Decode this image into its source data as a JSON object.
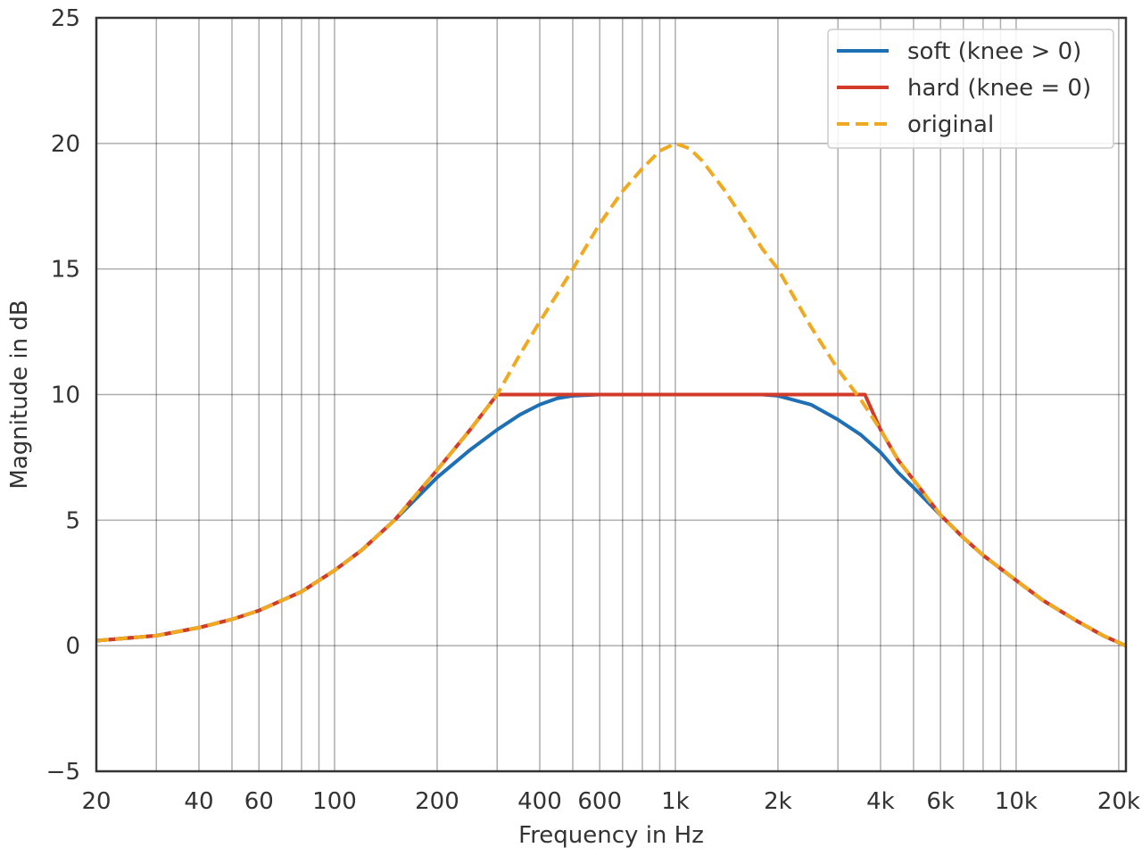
{
  "chart_data": {
    "type": "line",
    "title": "",
    "xlabel": "Frequency in Hz",
    "ylabel": "Magnitude in dB",
    "xscale": "log",
    "xlim": [
      20,
      21000
    ],
    "ylim": [
      -5,
      25
    ],
    "grid": true,
    "legend_position": "top-right",
    "x_ticks": [
      {
        "value": 20,
        "label": "20"
      },
      {
        "value": 40,
        "label": "40"
      },
      {
        "value": 60,
        "label": "60"
      },
      {
        "value": 100,
        "label": "100"
      },
      {
        "value": 200,
        "label": "200"
      },
      {
        "value": 400,
        "label": "400"
      },
      {
        "value": 600,
        "label": "600"
      },
      {
        "value": 1000,
        "label": "1k"
      },
      {
        "value": 2000,
        "label": "2k"
      },
      {
        "value": 4000,
        "label": "4k"
      },
      {
        "value": 6000,
        "label": "6k"
      },
      {
        "value": 10000,
        "label": "10k"
      },
      {
        "value": 20000,
        "label": "20k"
      }
    ],
    "x_gridlines": [
      20,
      30,
      40,
      50,
      60,
      70,
      80,
      90,
      100,
      200,
      300,
      400,
      500,
      600,
      700,
      800,
      900,
      1000,
      2000,
      3000,
      4000,
      5000,
      6000,
      7000,
      8000,
      9000,
      10000,
      20000
    ],
    "y_ticks": [
      {
        "value": -5,
        "label": "−5"
      },
      {
        "value": 0,
        "label": "0"
      },
      {
        "value": 5,
        "label": "5"
      },
      {
        "value": 10,
        "label": "10"
      },
      {
        "value": 15,
        "label": "15"
      },
      {
        "value": 20,
        "label": "20"
      },
      {
        "value": 25,
        "label": "25"
      }
    ],
    "series": [
      {
        "name": "soft (knee > 0)",
        "color": "#1f6fb4",
        "dash": "solid",
        "x": [
          20,
          30,
          40,
          50,
          60,
          70,
          80,
          100,
          120,
          150,
          200,
          250,
          300,
          350,
          400,
          450,
          500,
          600,
          700,
          800,
          1000,
          1200,
          1500,
          1800,
          2000,
          2500,
          3000,
          3500,
          4000,
          4500,
          5000,
          6000,
          7000,
          8000,
          10000,
          12000,
          15000,
          18000,
          21000
        ],
        "y": [
          0.2,
          0.4,
          0.72,
          1.05,
          1.4,
          1.8,
          2.15,
          3.0,
          3.8,
          5.0,
          6.7,
          7.8,
          8.6,
          9.2,
          9.6,
          9.85,
          9.95,
          10.0,
          10.0,
          10.0,
          10.0,
          10.0,
          10.0,
          10.0,
          9.95,
          9.6,
          9.0,
          8.4,
          7.7,
          6.9,
          6.3,
          5.2,
          4.3,
          3.6,
          2.6,
          1.8,
          1.0,
          0.4,
          0.0
        ]
      },
      {
        "name": "hard (knee = 0)",
        "color": "#d23b2a",
        "dash": "solid",
        "x": [
          20,
          30,
          40,
          50,
          60,
          70,
          80,
          100,
          120,
          150,
          200,
          250,
          300,
          400,
          600,
          1000,
          2000,
          3000,
          3600,
          4000,
          4500,
          5000,
          6000,
          7000,
          8000,
          10000,
          12000,
          15000,
          18000,
          21000
        ],
        "y": [
          0.2,
          0.4,
          0.72,
          1.05,
          1.4,
          1.8,
          2.15,
          3.0,
          3.8,
          5.0,
          7.0,
          8.6,
          10.0,
          10.0,
          10.0,
          10.0,
          10.0,
          10.0,
          10.0,
          8.6,
          7.4,
          6.6,
          5.2,
          4.3,
          3.6,
          2.6,
          1.8,
          1.0,
          0.4,
          0.0
        ]
      },
      {
        "name": "original",
        "color": "#f0aa22",
        "dash": "dashed",
        "x": [
          20,
          30,
          40,
          50,
          60,
          70,
          80,
          100,
          120,
          150,
          200,
          250,
          300,
          350,
          400,
          450,
          500,
          600,
          700,
          800,
          900,
          1000,
          1100,
          1200,
          1400,
          1600,
          1800,
          2000,
          2500,
          3000,
          3500,
          4000,
          4500,
          5000,
          6000,
          7000,
          8000,
          10000,
          12000,
          15000,
          18000,
          21000
        ],
        "y": [
          0.2,
          0.4,
          0.72,
          1.05,
          1.4,
          1.8,
          2.15,
          3.0,
          3.8,
          5.0,
          7.0,
          8.6,
          10.0,
          11.6,
          12.9,
          14.0,
          15.0,
          16.8,
          18.1,
          19.0,
          19.7,
          20.0,
          19.8,
          19.3,
          18.1,
          16.9,
          15.8,
          15.0,
          12.7,
          11.0,
          9.8,
          8.6,
          7.4,
          6.6,
          5.2,
          4.3,
          3.6,
          2.6,
          1.8,
          1.0,
          0.4,
          0.0
        ]
      }
    ]
  }
}
